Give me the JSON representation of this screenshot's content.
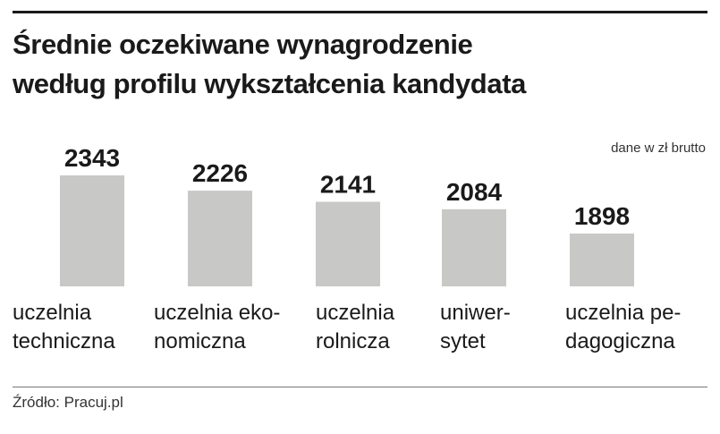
{
  "header": {
    "title_line1": "Średnie oczekiwane wynagrodzenie",
    "title_line2": "według profilu wykształcenia kandydata"
  },
  "unit_note": "dane w zł brutto",
  "source": "Źródło: Pracuj.pl",
  "colors": {
    "bar": "#c8c8c6",
    "text": "#1a1a1a",
    "rule": "#1a1a1a"
  },
  "chart_data": {
    "type": "bar",
    "title": "Średnie oczekiwane wynagrodzenie według profilu wykształcenia kandydata",
    "unit": "dane w zł brutto",
    "categories": [
      [
        "uczelnia",
        "techniczna"
      ],
      [
        "uczelnia eko-",
        "nomiczna"
      ],
      [
        "uczelnia",
        "rolnicza"
      ],
      [
        "uniwer-",
        "sytet"
      ],
      [
        "uczelnia pe-",
        "dagogiczna"
      ]
    ],
    "values": [
      2343,
      2226,
      2141,
      2084,
      1898
    ],
    "value_labels": [
      "2343",
      "2226",
      "2141",
      "2084",
      "1898"
    ],
    "grid": false,
    "legend": "none"
  }
}
